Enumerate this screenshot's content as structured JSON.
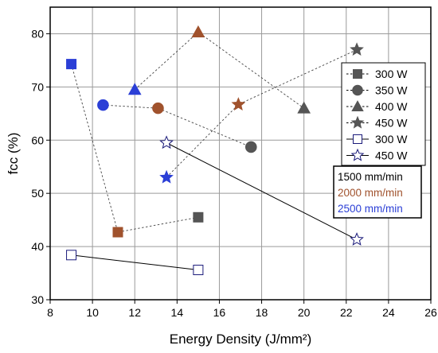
{
  "chart_data": {
    "type": "scatter",
    "title": "",
    "xlabel": "Energy Density (J/mm²)",
    "ylabel": "fcc (%)",
    "xlim": [
      8,
      26
    ],
    "ylim": [
      30,
      85
    ],
    "xticks": [
      8,
      10,
      12,
      14,
      16,
      18,
      20,
      22,
      24,
      26
    ],
    "yticks": [
      30,
      40,
      50,
      60,
      70,
      80
    ],
    "grid": true,
    "colors": {
      "1500 mm/min": "#555555",
      "2000 mm/min": "#a0522d",
      "2500 mm/min": "#2b3fd6"
    },
    "series": [
      {
        "name": "300 W",
        "marker": "square",
        "filled": true,
        "line": "dashed",
        "points": [
          [
            9.0,
            74.3,
            "2500 mm/min"
          ],
          [
            11.2,
            42.7,
            "2000 mm/min"
          ],
          [
            15.0,
            45.5,
            "1500 mm/min"
          ]
        ]
      },
      {
        "name": "350 W",
        "marker": "circle",
        "filled": true,
        "line": "dashed",
        "points": [
          [
            10.5,
            66.6,
            "2500 mm/min"
          ],
          [
            13.1,
            66.0,
            "2000 mm/min"
          ],
          [
            17.5,
            58.7,
            "1500 mm/min"
          ]
        ]
      },
      {
        "name": "400 W",
        "marker": "triangle",
        "filled": true,
        "line": "dashed",
        "points": [
          [
            12.0,
            69.5,
            "2500 mm/min"
          ],
          [
            15.0,
            80.3,
            "2000 mm/min"
          ],
          [
            20.0,
            66.0,
            "1500 mm/min"
          ]
        ]
      },
      {
        "name": "450 W",
        "marker": "star",
        "filled": true,
        "line": "dashed",
        "points": [
          [
            13.5,
            53.0,
            "2500 mm/min"
          ],
          [
            16.9,
            66.7,
            "2000 mm/min"
          ],
          [
            22.5,
            77.0,
            "1500 mm/min"
          ]
        ]
      },
      {
        "name": "300 W",
        "marker": "square",
        "filled": false,
        "line": "solid",
        "points": [
          [
            9.0,
            38.4,
            "2500 mm/min"
          ],
          [
            15.0,
            35.6,
            "1500 mm/min"
          ]
        ]
      },
      {
        "name": "450 W",
        "marker": "star",
        "filled": false,
        "line": "solid",
        "points": [
          [
            13.5,
            59.5,
            "2500 mm/min"
          ],
          [
            22.5,
            41.3,
            "1500 mm/min"
          ]
        ]
      }
    ],
    "legend": {
      "placement": "right",
      "entries": [
        "300 W",
        "350 W",
        "400 W",
        "450 W",
        "300 W",
        "450 W"
      ]
    },
    "speed_legend": {
      "placement": "right",
      "entries": [
        {
          "label": "1500 mm/min",
          "color": "#000000"
        },
        {
          "label": "2000 mm/min",
          "color": "#a0522d"
        },
        {
          "label": "2500 mm/min",
          "color": "#2b3fd6"
        }
      ]
    }
  }
}
